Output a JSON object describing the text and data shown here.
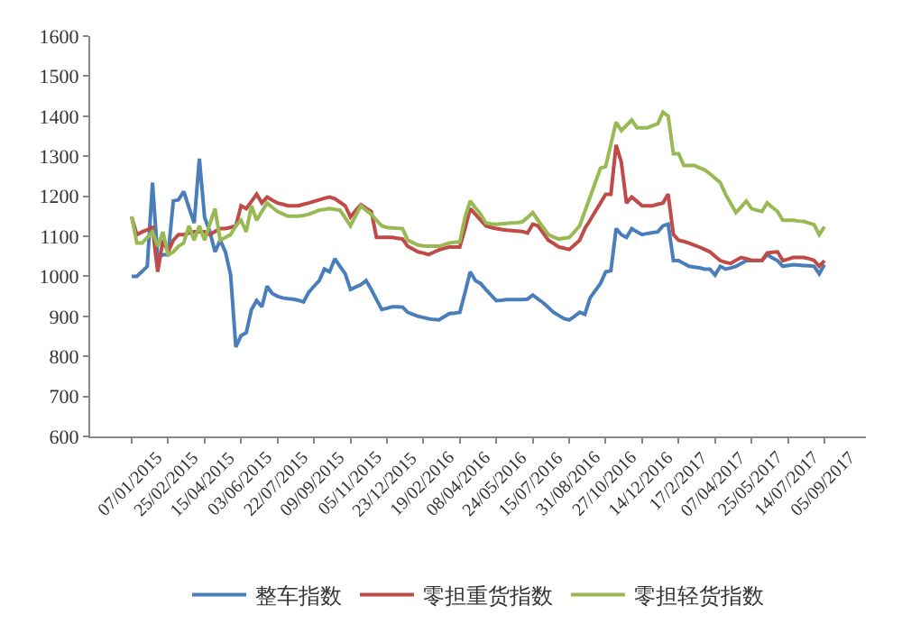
{
  "chart_data": {
    "type": "line",
    "legend": "bottom",
    "grid": false,
    "marker": "none",
    "line_style": "solid",
    "ylim": [
      600,
      1600
    ],
    "yticks": [
      600,
      700,
      800,
      900,
      1000,
      1100,
      1200,
      1300,
      1400,
      1500,
      1600
    ],
    "categories": [
      "07/01/2015",
      null,
      null,
      null,
      null,
      null,
      null,
      "25/02/2015",
      null,
      null,
      null,
      null,
      null,
      null,
      "15/04/2015",
      null,
      null,
      null,
      null,
      null,
      null,
      "03/06/2015",
      null,
      null,
      null,
      null,
      null,
      null,
      "22/07/2015",
      null,
      null,
      null,
      null,
      null,
      null,
      "09/09/2015",
      null,
      null,
      null,
      null,
      null,
      null,
      "05/11/2015",
      null,
      null,
      null,
      null,
      null,
      null,
      "23/12/2015",
      null,
      null,
      null,
      null,
      null,
      null,
      "19/02/2016",
      null,
      null,
      null,
      null,
      null,
      null,
      "08/04/2016",
      null,
      null,
      null,
      null,
      null,
      null,
      "24/05/2016",
      null,
      null,
      null,
      null,
      null,
      null,
      "15/07/2016",
      null,
      null,
      null,
      null,
      null,
      null,
      "31/08/2016",
      null,
      null,
      null,
      null,
      null,
      null,
      "27/10/2016",
      null,
      null,
      null,
      null,
      null,
      null,
      "14/12/2016",
      null,
      null,
      null,
      null,
      null,
      null,
      "17/2/2017",
      null,
      null,
      null,
      null,
      null,
      null,
      "07/04/2017",
      null,
      null,
      null,
      null,
      null,
      null,
      "25/05/2017",
      null,
      null,
      null,
      null,
      null,
      null,
      "14/07/2017",
      null,
      null,
      null,
      null,
      null,
      null,
      "05/09/2017"
    ],
    "series": [
      {
        "name": "整车指数",
        "color": "#4a7ebb",
        "values": [
          1000,
          1000,
          1012,
          1025,
          1234,
          1047,
          1054,
          1054,
          1188,
          1191,
          1212,
          1172,
          1133,
          1294,
          1147,
          1112,
          1061,
          1090,
          1061,
          1003,
          823,
          852,
          859,
          917,
          939,
          924,
          975,
          957,
          950,
          946,
          944,
          943,
          940,
          936,
          960,
          975,
          989,
          1018,
          1011,
          1044,
          1025,
          1006,
          967,
          973,
          979,
          989,
          967,
          942,
          917,
          920,
          924,
          924,
          923,
          910,
          905,
          900,
          897,
          894,
          892,
          891,
          899,
          907,
          908,
          910,
          960,
          1011,
          989,
          982,
          967,
          953,
          939,
          940,
          942,
          942,
          942,
          942,
          943,
          953,
          943,
          934,
          922,
          910,
          902,
          894,
          891,
          900,
          910,
          905,
          946,
          964,
          982,
          1011,
          1014,
          1119,
          1104,
          1097,
          1119,
          1111,
          1104,
          1107,
          1109,
          1111,
          1126,
          1130,
          1039,
          1039,
          1032,
          1025,
          1023,
          1021,
          1018,
          1018,
          1003,
          1025,
          1018,
          1021,
          1025,
          1032,
          1039,
          1039,
          1039,
          1039,
          1054,
          1046,
          1039,
          1025,
          1027,
          1029,
          1028,
          1027,
          1026,
          1025,
          1006,
          1029
        ]
      },
      {
        "name": "零担重货指数",
        "color": "#be4b48",
        "values": [
          1148,
          1104,
          1111,
          1116,
          1122,
          1011,
          1090,
          1061,
          1090,
          1104,
          1104,
          1108,
          1111,
          1111,
          1111,
          1104,
          1112,
          1119,
          1119,
          1122,
          1126,
          1176,
          1169,
          1187,
          1205,
          1183,
          1198,
          1190,
          1183,
          1180,
          1176,
          1176,
          1176,
          1180,
          1183,
          1187,
          1191,
          1195,
          1198,
          1194,
          1185,
          1176,
          1148,
          1164,
          1179,
          1170,
          1162,
          1097,
          1097,
          1097,
          1097,
          1095,
          1093,
          1075,
          1068,
          1061,
          1058,
          1054,
          1060,
          1066,
          1070,
          1073,
          1073,
          1073,
          1119,
          1169,
          1155,
          1140,
          1126,
          1122,
          1119,
          1117,
          1115,
          1114,
          1113,
          1112,
          1108,
          1130,
          1126,
          1108,
          1090,
          1082,
          1073,
          1070,
          1067,
          1078,
          1090,
          1119,
          1140,
          1162,
          1183,
          1205,
          1205,
          1328,
          1285,
          1183,
          1198,
          1187,
          1176,
          1176,
          1176,
          1180,
          1183,
          1205,
          1104,
          1090,
          1087,
          1083,
          1078,
          1073,
          1067,
          1061,
          1050,
          1039,
          1035,
          1032,
          1040,
          1047,
          1044,
          1040,
          1040,
          1040,
          1058,
          1060,
          1061,
          1039,
          1043,
          1047,
          1047,
          1047,
          1044,
          1040,
          1025,
          1039
        ]
      },
      {
        "name": "零担轻货指数",
        "color": "#98b954",
        "values": [
          1150,
          1083,
          1083,
          1097,
          1111,
          1075,
          1111,
          1054,
          1061,
          1075,
          1083,
          1126,
          1090,
          1126,
          1090,
          1130,
          1169,
          1090,
          1097,
          1104,
          1126,
          1140,
          1111,
          1176,
          1140,
          1162,
          1183,
          1172,
          1162,
          1156,
          1150,
          1150,
          1150,
          1152,
          1155,
          1160,
          1165,
          1167,
          1169,
          1167,
          1165,
          1146,
          1126,
          1151,
          1176,
          1165,
          1155,
          1140,
          1126,
          1122,
          1121,
          1120,
          1119,
          1090,
          1084,
          1078,
          1076,
          1075,
          1075,
          1075,
          1079,
          1083,
          1085,
          1086,
          1148,
          1188,
          1171,
          1155,
          1133,
          1131,
          1130,
          1131,
          1132,
          1133,
          1134,
          1136,
          1147,
          1159,
          1140,
          1122,
          1104,
          1098,
          1093,
          1095,
          1097,
          1111,
          1126,
          1162,
          1198,
          1234,
          1270,
          1274,
          1330,
          1385,
          1364,
          1377,
          1390,
          1371,
          1371,
          1371,
          1376,
          1381,
          1410,
          1400,
          1306,
          1306,
          1277,
          1277,
          1277,
          1271,
          1266,
          1256,
          1245,
          1234,
          1205,
          1182,
          1159,
          1173,
          1188,
          1169,
          1165,
          1162,
          1183,
          1172,
          1162,
          1140,
          1140,
          1140,
          1138,
          1137,
          1133,
          1129,
          1104,
          1124
        ]
      }
    ]
  }
}
